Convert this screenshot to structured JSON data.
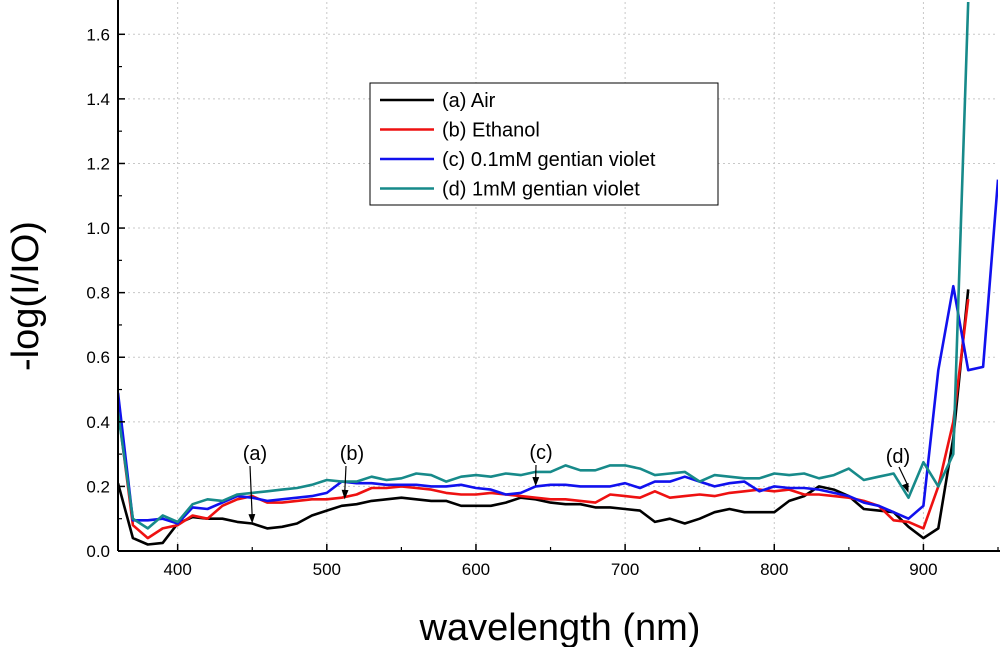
{
  "chart_data": {
    "type": "line",
    "title": "",
    "xlabel": "wavelength (nm)",
    "ylabel": "-log(I/IO)",
    "xlim": [
      360,
      950
    ],
    "ylim": [
      0,
      1.7
    ],
    "xticks": [
      400,
      500,
      600,
      700,
      800,
      900
    ],
    "yticks": [
      0.0,
      0.2,
      0.4,
      0.6,
      0.8,
      1.0,
      1.2,
      1.4,
      1.6
    ],
    "xtick_labels": [
      "400",
      "500",
      "600",
      "700",
      "800",
      "900"
    ],
    "ytick_labels": [
      "0.0",
      "0.2",
      "0.4",
      "0.6",
      "0.8",
      "1.0",
      "1.2",
      "1.4",
      "1.6"
    ],
    "grid": true,
    "legend_position": "top-center",
    "series": [
      {
        "name": "(a) Air",
        "color": "#000000",
        "x": [
          360,
          370,
          380,
          390,
          400,
          410,
          420,
          430,
          440,
          450,
          460,
          470,
          480,
          490,
          500,
          510,
          520,
          530,
          540,
          550,
          560,
          570,
          580,
          590,
          600,
          610,
          620,
          630,
          640,
          650,
          660,
          670,
          680,
          690,
          700,
          710,
          720,
          730,
          740,
          750,
          760,
          770,
          780,
          790,
          800,
          810,
          820,
          830,
          840,
          850,
          860,
          870,
          880,
          890,
          900,
          910,
          920,
          930
        ],
        "y": [
          0.21,
          0.04,
          0.02,
          0.025,
          0.085,
          0.105,
          0.1,
          0.1,
          0.09,
          0.085,
          0.07,
          0.075,
          0.085,
          0.11,
          0.125,
          0.14,
          0.145,
          0.155,
          0.16,
          0.165,
          0.16,
          0.155,
          0.155,
          0.14,
          0.14,
          0.14,
          0.15,
          0.165,
          0.16,
          0.15,
          0.145,
          0.145,
          0.135,
          0.135,
          0.13,
          0.125,
          0.09,
          0.1,
          0.085,
          0.1,
          0.12,
          0.13,
          0.12,
          0.12,
          0.12,
          0.155,
          0.17,
          0.2,
          0.19,
          0.17,
          0.13,
          0.125,
          0.12,
          0.075,
          0.04,
          0.07,
          0.35,
          0.81
        ]
      },
      {
        "name": "(b) Ethanol",
        "color": "#ee1111",
        "x": [
          360,
          370,
          380,
          390,
          400,
          410,
          420,
          430,
          440,
          450,
          460,
          470,
          480,
          490,
          500,
          510,
          520,
          530,
          540,
          550,
          560,
          570,
          580,
          590,
          600,
          610,
          620,
          630,
          640,
          650,
          660,
          670,
          680,
          690,
          700,
          710,
          720,
          730,
          740,
          750,
          760,
          770,
          780,
          790,
          800,
          810,
          820,
          830,
          840,
          850,
          860,
          870,
          880,
          890,
          900,
          910,
          920,
          930
        ],
        "y": [
          0.44,
          0.08,
          0.04,
          0.07,
          0.08,
          0.11,
          0.1,
          0.14,
          0.16,
          0.17,
          0.15,
          0.15,
          0.155,
          0.16,
          0.16,
          0.165,
          0.175,
          0.195,
          0.195,
          0.2,
          0.195,
          0.19,
          0.18,
          0.175,
          0.175,
          0.18,
          0.175,
          0.17,
          0.165,
          0.16,
          0.16,
          0.155,
          0.15,
          0.175,
          0.17,
          0.165,
          0.185,
          0.165,
          0.17,
          0.175,
          0.17,
          0.18,
          0.185,
          0.19,
          0.185,
          0.19,
          0.175,
          0.175,
          0.17,
          0.165,
          0.155,
          0.14,
          0.095,
          0.09,
          0.07,
          0.2,
          0.4,
          0.78
        ]
      },
      {
        "name": "(c) 0.1mM gentian violet",
        "color": "#1111ee",
        "x": [
          360,
          370,
          380,
          390,
          400,
          410,
          420,
          430,
          440,
          450,
          460,
          470,
          480,
          490,
          500,
          510,
          520,
          530,
          540,
          550,
          560,
          570,
          580,
          590,
          600,
          610,
          620,
          630,
          640,
          650,
          660,
          670,
          680,
          690,
          700,
          710,
          720,
          730,
          740,
          750,
          760,
          770,
          780,
          790,
          800,
          810,
          820,
          830,
          840,
          850,
          860,
          870,
          880,
          890,
          900,
          910,
          920,
          930,
          940,
          950
        ],
        "y": [
          0.49,
          0.095,
          0.095,
          0.1,
          0.085,
          0.135,
          0.13,
          0.15,
          0.17,
          0.165,
          0.155,
          0.16,
          0.165,
          0.17,
          0.18,
          0.215,
          0.21,
          0.21,
          0.205,
          0.205,
          0.205,
          0.2,
          0.2,
          0.205,
          0.195,
          0.19,
          0.175,
          0.18,
          0.2,
          0.205,
          0.205,
          0.2,
          0.2,
          0.2,
          0.21,
          0.195,
          0.215,
          0.215,
          0.23,
          0.215,
          0.2,
          0.21,
          0.215,
          0.185,
          0.2,
          0.195,
          0.195,
          0.19,
          0.18,
          0.17,
          0.15,
          0.14,
          0.12,
          0.1,
          0.14,
          0.56,
          0.82,
          0.56,
          0.57,
          1.15
        ]
      },
      {
        "name": "(d) 1mM gentian violet",
        "color": "#178a8a",
        "x": [
          360,
          370,
          380,
          390,
          400,
          410,
          420,
          430,
          440,
          450,
          460,
          470,
          480,
          490,
          500,
          510,
          520,
          530,
          540,
          550,
          560,
          570,
          580,
          590,
          600,
          610,
          620,
          630,
          640,
          650,
          660,
          670,
          680,
          690,
          700,
          710,
          720,
          730,
          740,
          750,
          760,
          770,
          780,
          790,
          800,
          810,
          820,
          830,
          840,
          850,
          860,
          870,
          880,
          890,
          900,
          910,
          920,
          930
        ],
        "y": [
          0.43,
          0.1,
          0.07,
          0.11,
          0.09,
          0.145,
          0.16,
          0.155,
          0.175,
          0.18,
          0.185,
          0.19,
          0.195,
          0.205,
          0.22,
          0.215,
          0.215,
          0.23,
          0.22,
          0.225,
          0.24,
          0.235,
          0.215,
          0.23,
          0.235,
          0.23,
          0.24,
          0.235,
          0.245,
          0.245,
          0.265,
          0.25,
          0.25,
          0.265,
          0.265,
          0.255,
          0.235,
          0.24,
          0.245,
          0.215,
          0.235,
          0.23,
          0.225,
          0.225,
          0.24,
          0.235,
          0.24,
          0.225,
          0.235,
          0.255,
          0.22,
          0.23,
          0.24,
          0.165,
          0.275,
          0.2,
          0.3,
          1.7
        ]
      }
    ],
    "annotations": [
      {
        "label": "(a)",
        "arrow_to": [
          450,
          0.085
        ]
      },
      {
        "label": "(b)",
        "arrow_to": [
          512,
          0.16
        ]
      },
      {
        "label": "(c)",
        "arrow_to": [
          640,
          0.2
        ]
      },
      {
        "label": "(d)",
        "arrow_to": [
          890,
          0.18
        ]
      }
    ]
  }
}
